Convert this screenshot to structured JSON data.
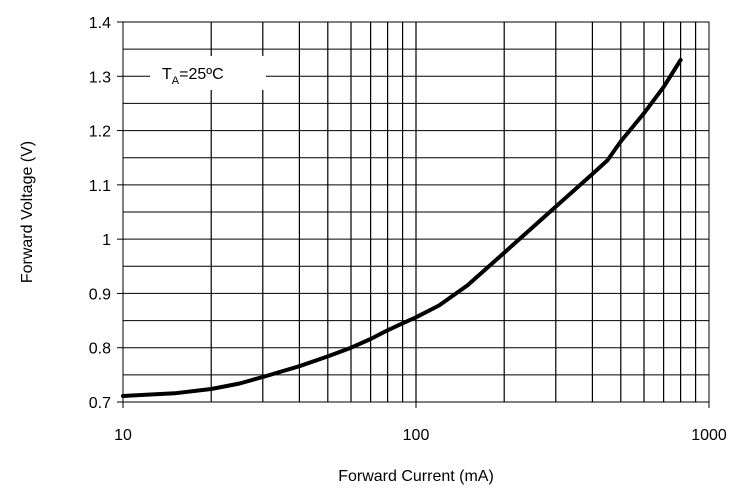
{
  "chart_data": {
    "type": "line",
    "xlabel": "Forward Current (mA)",
    "ylabel": "Forward Voltage (V)",
    "x_scale": "log",
    "xlim": [
      10,
      1000
    ],
    "ylim": [
      0.7,
      1.4
    ],
    "x_ticks": [
      10,
      100,
      1000
    ],
    "x_tick_labels": [
      "10",
      "100",
      "1000"
    ],
    "y_ticks": [
      0.7,
      0.8,
      0.9,
      1.0,
      1.1,
      1.2,
      1.3,
      1.4
    ],
    "y_tick_labels": [
      "0.7",
      "0.8",
      "0.9",
      "1",
      "1.1",
      "1.2",
      "1.3",
      "1.4"
    ],
    "grid": true,
    "annotation": {
      "base": "T",
      "sub": "A",
      "rest": "=25ºC"
    },
    "series": [
      {
        "x": [
          10,
          15,
          20,
          25,
          30,
          40,
          50,
          60,
          70,
          80,
          90,
          100,
          120,
          150,
          200,
          300,
          400,
          450,
          500,
          600,
          700,
          800
        ],
        "y": [
          0.711,
          0.716,
          0.724,
          0.734,
          0.746,
          0.766,
          0.784,
          0.8,
          0.816,
          0.832,
          0.845,
          0.856,
          0.878,
          0.915,
          0.975,
          1.06,
          1.12,
          1.145,
          1.18,
          1.232,
          1.28,
          1.33
        ]
      }
    ]
  }
}
